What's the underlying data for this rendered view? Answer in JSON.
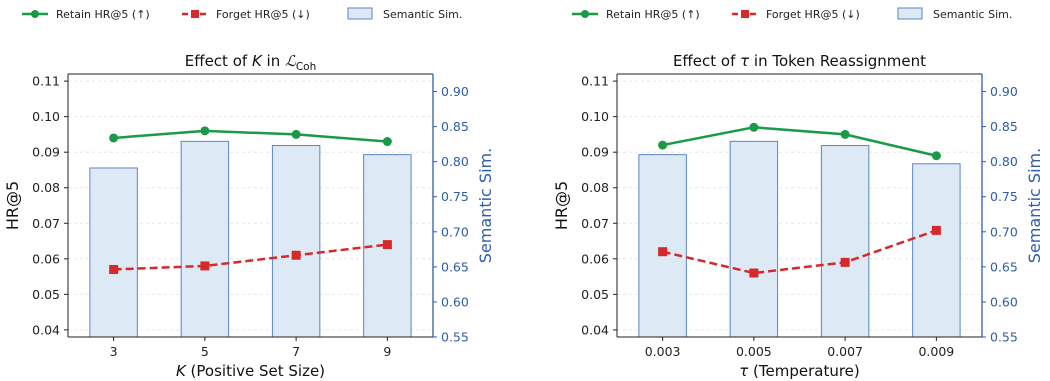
{
  "legends": [
    {
      "retain": "Retain HR@5 (↑)",
      "forget": "Forget HR@5 (↓)",
      "sim": "Semantic Sim."
    },
    {
      "retain": "Retain HR@5 (↑)",
      "forget": "Forget HR@5 (↓)",
      "sim": "Semantic Sim."
    }
  ],
  "colors": {
    "retain": "#1a9a48",
    "forget": "#d62a2a",
    "bar_fill": "#dde9f4",
    "bar_edge": "#5b86c4",
    "right_axis": "#2f5da8",
    "grid": "#e6e6e6"
  },
  "chart_data": [
    {
      "type": "bar+line",
      "title_prefix": "Effect of ",
      "title_var": "K",
      "title_mid": " in ",
      "title_sym": "ℒ",
      "title_sub": "Coh",
      "xlabel_var": "K",
      "xlabel_rest": " (Positive Set Size)",
      "ylabel": "HR@5",
      "y2label": "Semantic Sim.",
      "categories": [
        "3",
        "5",
        "7",
        "9"
      ],
      "ylim": [
        0.038,
        0.112
      ],
      "yticks": [
        "0.04",
        "0.05",
        "0.06",
        "0.07",
        "0.08",
        "0.09",
        "0.10",
        "0.11"
      ],
      "y2lim": [
        0.55,
        0.925
      ],
      "y2ticks": [
        "0.55",
        "0.60",
        "0.65",
        "0.70",
        "0.75",
        "0.80",
        "0.85",
        "0.90"
      ],
      "series": [
        {
          "name": "Retain HR@5 (↑)",
          "axis": "left",
          "kind": "line",
          "values": [
            0.094,
            0.096,
            0.095,
            0.093
          ]
        },
        {
          "name": "Forget HR@5 (↓)",
          "axis": "left",
          "kind": "dashed-line",
          "values": [
            0.057,
            0.058,
            0.061,
            0.064
          ]
        },
        {
          "name": "Semantic Sim.",
          "axis": "right",
          "kind": "bar",
          "values": [
            0.791,
            0.829,
            0.823,
            0.81
          ]
        }
      ],
      "grid": true
    },
    {
      "type": "bar+line",
      "title_prefix": "Effect of ",
      "title_var": "τ",
      "title_mid": " in Token Reassignment",
      "title_sym": "",
      "title_sub": "",
      "xlabel_var": "τ",
      "xlabel_rest": " (Temperature)",
      "ylabel": "HR@5",
      "y2label": "Semantic Sim.",
      "categories": [
        "0.003",
        "0.005",
        "0.007",
        "0.009"
      ],
      "ylim": [
        0.038,
        0.112
      ],
      "yticks": [
        "0.04",
        "0.05",
        "0.06",
        "0.07",
        "0.08",
        "0.09",
        "0.10",
        "0.11"
      ],
      "y2lim": [
        0.55,
        0.925
      ],
      "y2ticks": [
        "0.55",
        "0.60",
        "0.65",
        "0.70",
        "0.75",
        "0.80",
        "0.85",
        "0.90"
      ],
      "series": [
        {
          "name": "Retain HR@5 (↑)",
          "axis": "left",
          "kind": "line",
          "values": [
            0.092,
            0.097,
            0.095,
            0.089
          ]
        },
        {
          "name": "Forget HR@5 (↓)",
          "axis": "left",
          "kind": "dashed-line",
          "values": [
            0.062,
            0.056,
            0.059,
            0.068
          ]
        },
        {
          "name": "Semantic Sim.",
          "axis": "right",
          "kind": "bar",
          "values": [
            0.81,
            0.829,
            0.823,
            0.797
          ]
        }
      ],
      "grid": true
    }
  ]
}
